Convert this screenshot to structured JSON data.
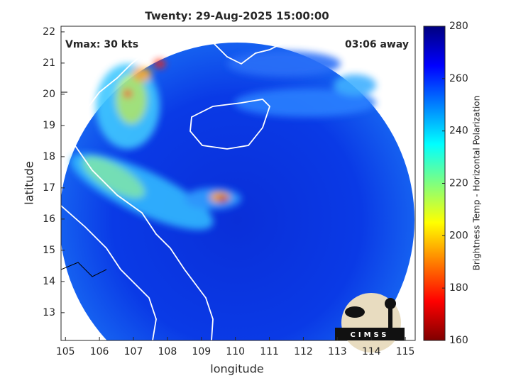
{
  "title": "Twenty: 29-Aug-2025 15:00:00",
  "annotations": {
    "vmax": "Vmax: 30 kts",
    "time_away": "03:06 away"
  },
  "map": {
    "xlabel": "longitude",
    "ylabel": "latitude",
    "xlim": [
      104.87,
      115.29
    ],
    "ylim": [
      12.11,
      22.18
    ],
    "xticks": [
      105,
      106,
      107,
      108,
      109,
      110,
      111,
      112,
      113,
      114,
      115
    ],
    "yticks": [
      13,
      14,
      15,
      16,
      17,
      18,
      19,
      20,
      21,
      22
    ]
  },
  "colorbar": {
    "label": "Brightness Temp - Horizontal Polarization",
    "lim": [
      160,
      280
    ],
    "ticks": [
      160,
      180,
      200,
      220,
      240,
      260,
      280
    ]
  },
  "logo": "CIMSS"
}
